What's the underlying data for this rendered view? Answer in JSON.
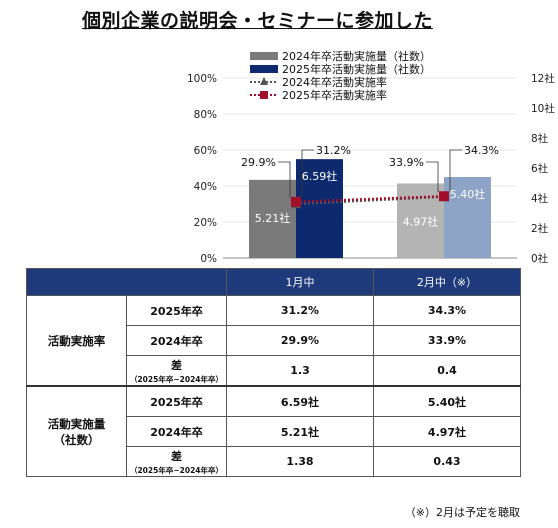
{
  "title": "個別企業の説明会・セミナーに参加した",
  "chart_data": {
    "type": "bar",
    "categories": [
      "1月中",
      "2月中（※）"
    ],
    "series": [
      {
        "name": "2024年卒活動実施量（社数）",
        "kind": "bar",
        "axis": "right",
        "values": [
          5.21,
          4.97
        ],
        "labels": [
          "5.21社",
          "4.97社"
        ]
      },
      {
        "name": "2025年卒活動実施量（社数）",
        "kind": "bar",
        "axis": "right",
        "values": [
          6.59,
          5.4
        ],
        "labels": [
          "6.59社",
          "5.40社"
        ]
      },
      {
        "name": "2024年卒活動実施率",
        "kind": "line",
        "axis": "left",
        "values": [
          29.9,
          33.9
        ],
        "labels": [
          "29.9%",
          "33.9%"
        ]
      },
      {
        "name": "2025年卒活動実施率",
        "kind": "line",
        "axis": "left",
        "values": [
          31.2,
          34.3
        ],
        "labels": [
          "31.2%",
          "34.3%"
        ]
      }
    ],
    "y_left": {
      "range": [
        0,
        100
      ],
      "ticks": [
        "0%",
        "20%",
        "40%",
        "60%",
        "80%",
        "100%"
      ]
    },
    "y_right": {
      "range": [
        0,
        12
      ],
      "ticks": [
        "0社",
        "2社",
        "4社",
        "6社",
        "8社",
        "10社",
        "12社"
      ]
    },
    "legend_position": "top",
    "colors": {
      "bar2024_a": "#7a7a7a",
      "bar2024_b": "#b4b4b4",
      "bar2025_a": "#0d2a6e",
      "bar2025_b": "#8ea4c6",
      "line2024": "#555555",
      "line2025": "#a0102a"
    }
  },
  "table": {
    "headers": [
      "1月中",
      "2月中（※）"
    ],
    "groups": [
      {
        "label_line1": "活動実施率",
        "label_line2": "",
        "rows": [
          {
            "label": "2025年卒",
            "note": "",
            "values": [
              "31.2%",
              "34.3%"
            ]
          },
          {
            "label": "2024年卒",
            "note": "",
            "values": [
              "29.9%",
              "33.9%"
            ]
          },
          {
            "label": "差",
            "note": "（2025年卒−2024年卒）",
            "values": [
              "1.3",
              "0.4"
            ]
          }
        ]
      },
      {
        "label_line1": "活動実施量",
        "label_line2": "（社数）",
        "rows": [
          {
            "label": "2025年卒",
            "note": "",
            "values": [
              "6.59社",
              "5.40社"
            ]
          },
          {
            "label": "2024年卒",
            "note": "",
            "values": [
              "5.21社",
              "4.97社"
            ]
          },
          {
            "label": "差",
            "note": "（2025年卒−2024年卒）",
            "values": [
              "1.38",
              "0.43"
            ]
          }
        ]
      }
    ]
  },
  "footnote": "（※）2月は予定を聴取"
}
